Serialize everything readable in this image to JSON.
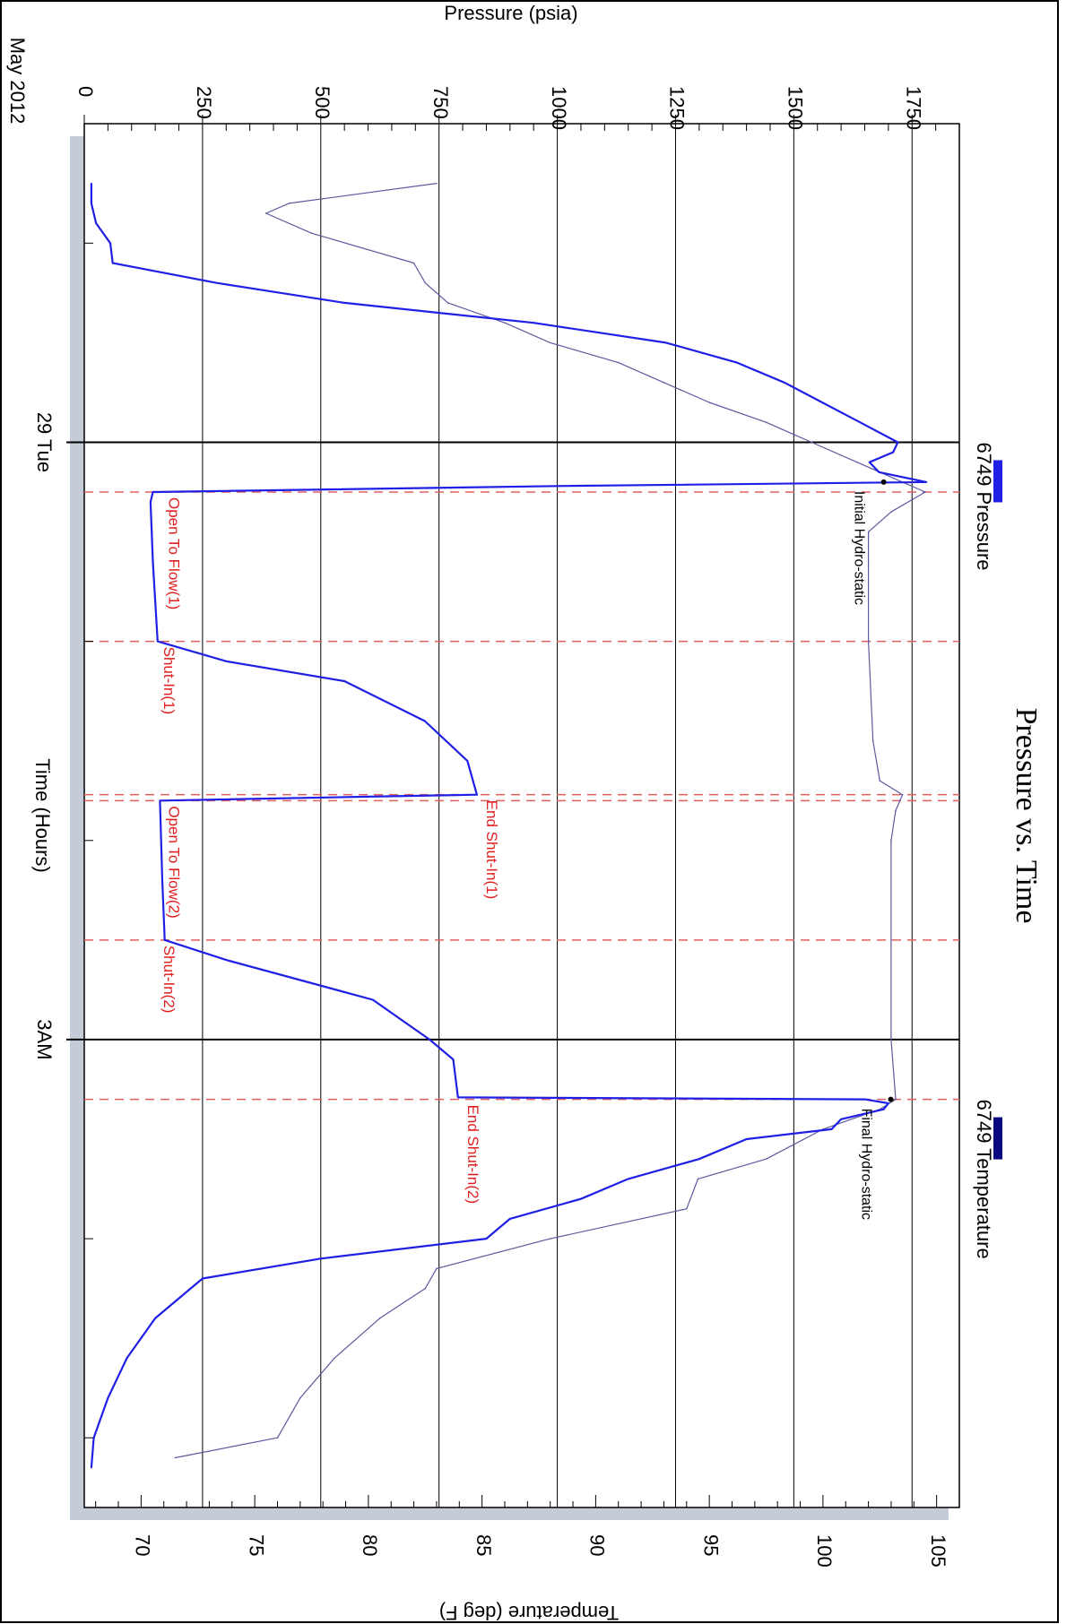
{
  "chart_data": {
    "type": "line",
    "title": "Pressure vs. Time",
    "xlabel": "Time (Hours)",
    "date_label": "May 2012",
    "ylabel": "Pressure (psia)",
    "ylabel2": "Temperature (deg F)",
    "x_range_hours": [
      -1.6,
      5.35
    ],
    "ylim": [
      0,
      1850
    ],
    "ylim2": [
      67.5,
      106
    ],
    "x_major_ticks": [
      {
        "hour": 0,
        "label": "29 Tue"
      },
      {
        "hour": 3,
        "label": "3AM"
      }
    ],
    "x_minor_ticks_hours": [
      -1,
      1,
      2,
      4,
      5
    ],
    "y_ticks": [
      0,
      250,
      500,
      750,
      1000,
      1250,
      1500,
      1750
    ],
    "y_ticks_labels": [
      "0",
      "250",
      "500",
      "750",
      "1000",
      "1250",
      "1500",
      "1750"
    ],
    "y2_ticks": [
      70,
      75,
      80,
      85,
      90,
      95,
      100,
      105
    ],
    "y2_ticks_labels": [
      "70",
      "75",
      "80",
      "85",
      "90",
      "95",
      "100",
      "105"
    ],
    "grid": true,
    "legend": [
      {
        "name": "6749 Pressure",
        "color": "#1f1fe6",
        "placement": "top"
      },
      {
        "name": "6749 Temperature",
        "color": "#0a0a80",
        "placement": "bottom"
      }
    ],
    "events": [
      {
        "label": "Open To Flow(1)",
        "hour": 0.25
      },
      {
        "label": "Shut-In(1)",
        "hour": 1.0
      },
      {
        "label": "End Shut-In(1)",
        "hour": 1.77
      },
      {
        "label": "Open To Flow(2)",
        "hour": 1.8
      },
      {
        "label": "Shut-In(2)",
        "hour": 2.5
      },
      {
        "label": "End Shut-In(2)",
        "hour": 3.3
      }
    ],
    "annotations": [
      {
        "label": "Initial Hydro-static",
        "hour": 0.2,
        "psia": 1690
      },
      {
        "label": "Final Hydro-static",
        "hour": 3.3,
        "psia": 1705
      }
    ],
    "series": [
      {
        "name": "6749 Pressure",
        "x": [
          -1.3,
          -1.2,
          -1.1,
          -1.0,
          -0.9,
          -0.8,
          -0.7,
          -0.6,
          -0.5,
          -0.4,
          -0.3,
          -0.2,
          -0.1,
          0,
          0.05,
          0.1,
          0.15,
          0.2,
          0.22,
          0.25,
          0.3,
          0.6,
          1.0,
          1.1,
          1.2,
          1.4,
          1.6,
          1.77,
          1.78,
          1.8,
          2.2,
          2.5,
          2.6,
          2.8,
          3.0,
          3.1,
          3.29,
          3.3,
          3.32,
          3.35,
          3.4,
          3.45,
          3.5,
          3.6,
          3.7,
          3.8,
          3.9,
          4.0,
          4.1,
          4.2,
          4.4,
          4.6,
          4.8,
          5.0,
          5.15
        ],
        "values": [
          15,
          15,
          25,
          55,
          60,
          280,
          550,
          950,
          1230,
          1380,
          1480,
          1560,
          1640,
          1720,
          1710,
          1660,
          1680,
          1780,
          1000,
          145,
          140,
          145,
          155,
          300,
          550,
          720,
          810,
          830,
          600,
          160,
          165,
          170,
          300,
          610,
          730,
          780,
          790,
          1650,
          1700,
          1690,
          1600,
          1580,
          1400,
          1300,
          1150,
          1050,
          900,
          850,
          500,
          250,
          150,
          90,
          50,
          20,
          15
        ]
      },
      {
        "name": "6749 Temperature",
        "x": [
          -1.3,
          -1.2,
          -1.15,
          -1.05,
          -0.9,
          -0.8,
          -0.7,
          -0.6,
          -0.5,
          -0.4,
          -0.3,
          -0.2,
          -0.1,
          0,
          0.1,
          0.2,
          0.25,
          0.35,
          0.45,
          0.6,
          1.0,
          1.5,
          1.7,
          1.77,
          1.85,
          2.0,
          2.5,
          3.0,
          3.3,
          3.35,
          3.45,
          3.6,
          3.7,
          3.85,
          4.0,
          4.15,
          4.25,
          4.4,
          4.6,
          4.8,
          5.0,
          5.1
        ],
        "values": [
          83.0,
          76.5,
          75.5,
          77.5,
          82.0,
          82.5,
          83.5,
          86.0,
          88.0,
          91.0,
          93.0,
          95.0,
          97.5,
          99.5,
          101.5,
          103.5,
          104.5,
          103.0,
          102.0,
          102.0,
          102.0,
          102.2,
          102.5,
          103.5,
          103.2,
          103.0,
          103.0,
          103.0,
          103.2,
          102.5,
          100.0,
          97.5,
          94.5,
          94.0,
          88.0,
          83.0,
          82.5,
          80.5,
          78.5,
          77.0,
          76.0,
          71.5
        ]
      }
    ]
  }
}
